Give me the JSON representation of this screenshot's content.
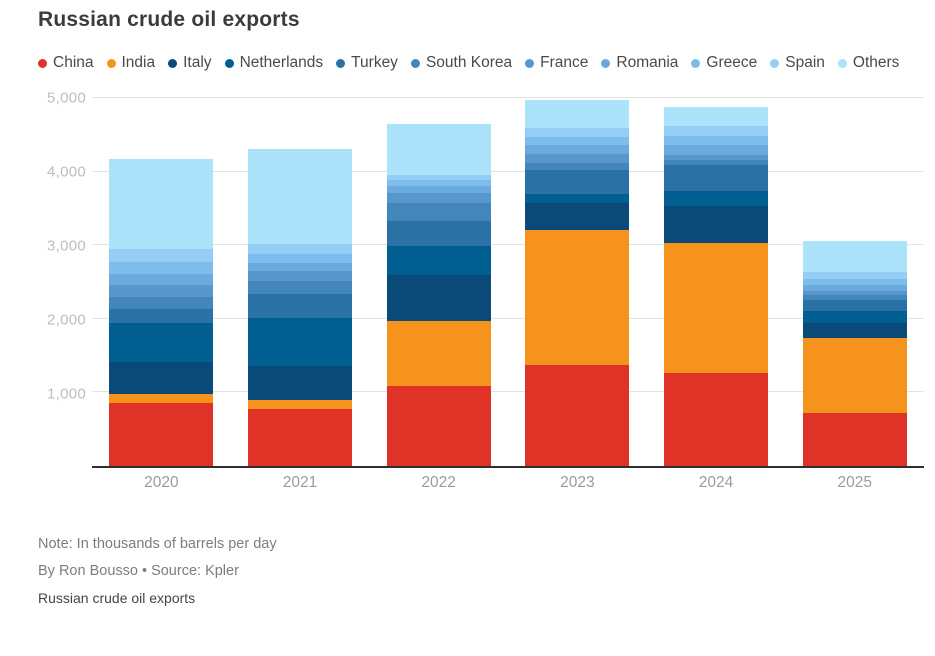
{
  "title": "Russian crude oil exports",
  "chart_data": {
    "type": "bar",
    "stacked": true,
    "title": "Russian crude oil exports",
    "unit": "thousands of barrels per day",
    "categories": [
      "2020",
      "2021",
      "2022",
      "2023",
      "2024",
      "2025"
    ],
    "series": [
      {
        "name": "China",
        "color": "#df3328",
        "values": [
          850,
          770,
          1080,
          1360,
          1260,
          710
        ]
      },
      {
        "name": "India",
        "color": "#f6931d",
        "values": [
          120,
          125,
          880,
          1830,
          1760,
          1020
        ]
      },
      {
        "name": "Italy",
        "color": "#0a4a78",
        "values": [
          440,
          450,
          620,
          360,
          500,
          205
        ]
      },
      {
        "name": "Netherlands",
        "color": "#005e90",
        "values": [
          520,
          650,
          400,
          125,
          190,
          165
        ]
      },
      {
        "name": "Turkey",
        "color": "#2a71a5",
        "values": [
          190,
          330,
          330,
          330,
          360,
          150
        ]
      },
      {
        "name": "South Korea",
        "color": "#4386bb",
        "values": [
          170,
          175,
          245,
          95,
          70,
          60
        ]
      },
      {
        "name": "France",
        "color": "#5897cc",
        "values": [
          160,
          140,
          135,
          120,
          70,
          60
        ]
      },
      {
        "name": "Romania",
        "color": "#6aaadf",
        "values": [
          150,
          110,
          90,
          115,
          135,
          80
        ]
      },
      {
        "name": "Greece",
        "color": "#7dbdee",
        "values": [
          160,
          120,
          90,
          115,
          120,
          75
        ]
      },
      {
        "name": "Spain",
        "color": "#94cef5",
        "values": [
          175,
          125,
          70,
          120,
          125,
          95
        ]
      },
      {
        "name": "Others",
        "color": "#abe3fb",
        "values": [
          1215,
          1285,
          680,
          380,
          260,
          420
        ]
      }
    ],
    "ylim": [
      0,
      5000
    ],
    "yticks": [
      1000,
      2000,
      3000,
      4000,
      5000
    ],
    "ytick_labels": [
      "1,000",
      "2,000",
      "3,000",
      "4,000",
      "5,000"
    ],
    "grid": true,
    "legend_position": "top"
  },
  "footer": {
    "note": "Note: In thousands of barrels per day",
    "byline": "By Ron Bousso • Source: Kpler",
    "caption": "Russian crude oil exports"
  }
}
